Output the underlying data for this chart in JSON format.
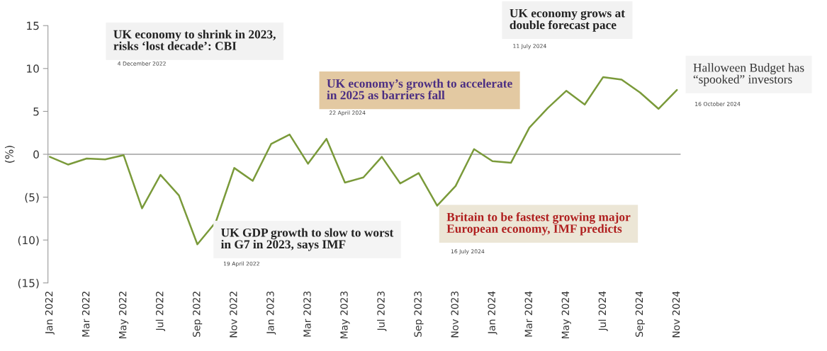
{
  "chart_data": {
    "type": "line",
    "categories": [
      "Jan 2022",
      null,
      "Mar 2022",
      null,
      "May 2022",
      null,
      "Jul 2022",
      null,
      "Sep 2022",
      null,
      "Nov 2022",
      null,
      "Jan 2023",
      null,
      "Mar 2023",
      null,
      "May 2023",
      null,
      "Jul 2023",
      null,
      "Sep 2023",
      null,
      "Nov 2023",
      null,
      "Jan 2024",
      null,
      "Mar 2024",
      null,
      "May 2024",
      null,
      "Jul 2024",
      null,
      "Sep 2024",
      null,
      "Nov 2024"
    ],
    "series": [
      {
        "color": "#7a9a3a",
        "values": [
          -0.3,
          -1.2,
          -0.5,
          -0.6,
          -0.1,
          -6.3,
          -2.4,
          -4.8,
          -10.5,
          -7.9,
          -1.6,
          -3.1,
          1.2,
          2.3,
          -1.1,
          1.8,
          -3.3,
          -2.7,
          -0.3,
          -3.4,
          -2.2,
          -6.0,
          -3.7,
          0.6,
          -0.8,
          -1.0,
          3.1,
          5.4,
          7.4,
          5.8,
          9.0,
          8.7,
          7.2,
          5.3,
          7.5
        ]
      }
    ],
    "ylabel": "(%)",
    "ylim": [
      -15,
      15
    ],
    "yticks": [
      {
        "value": -15,
        "label": "(15)"
      },
      {
        "value": -10,
        "label": "(10)"
      },
      {
        "value": -5,
        "label": "(5)"
      },
      0,
      5,
      10,
      15
    ],
    "ref_lines": [
      {
        "axis": "y",
        "value": 0,
        "color": "#a0a0a0"
      }
    ],
    "grid": false,
    "legend": false,
    "marker": "none",
    "line_style": "solid",
    "annotations": [
      "UK economy to shrink in 2023,\nrisks ‘lost decade’: CBI",
      "4 December 2022",
      "UK economy’s growth to accelerate\nin 2025 as barriers fall",
      "22 April 2024",
      "UK economy grows at\ndouble forecast pace",
      "11 July 2024",
      "Halloween Budget has\n“spooked” investors",
      "16 October 2024",
      "UK GDP growth to slow to worst\nin G7 in 2023, says IMF",
      "19 April 2022",
      "Britain to be fastest growing major\nEuropean economy, IMF predicts",
      "16 July 2024"
    ]
  }
}
